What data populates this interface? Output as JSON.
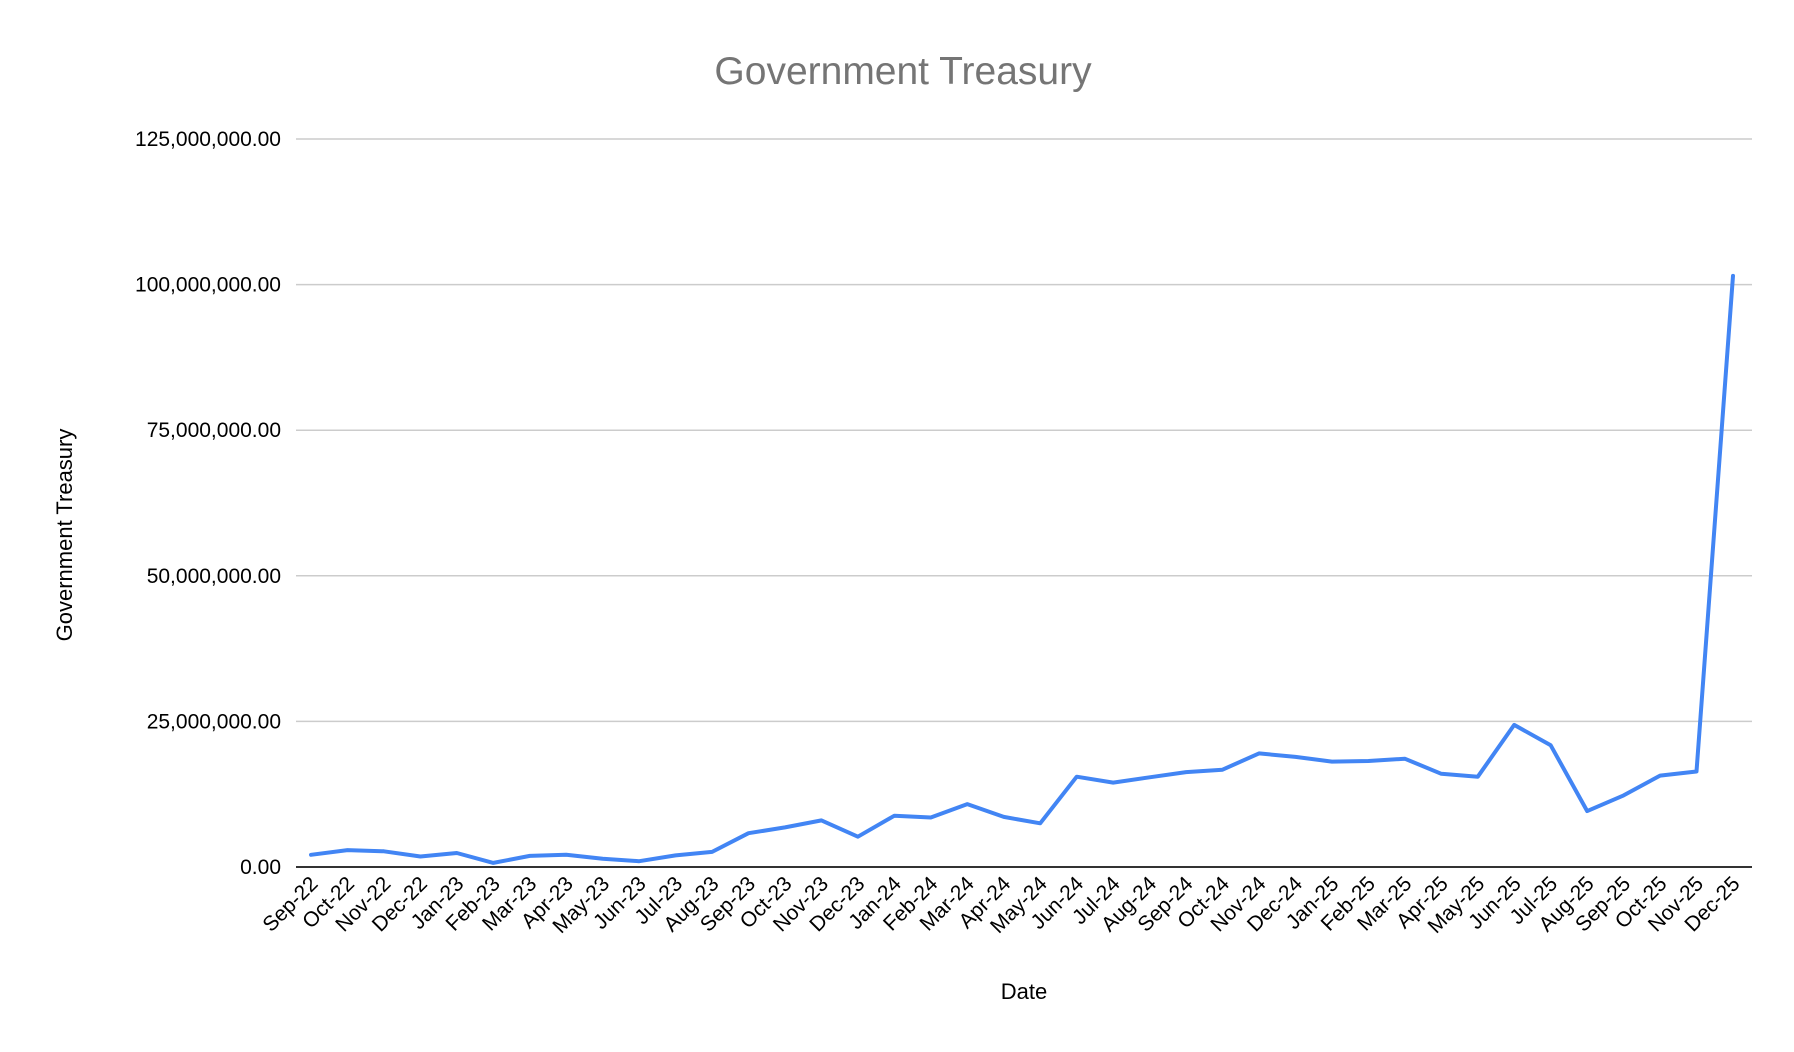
{
  "chart_data": {
    "type": "line",
    "title": "Government Treasury",
    "xlabel": "Date",
    "ylabel": "Government Treasury",
    "ylim": [
      0,
      125000000
    ],
    "yticks": [
      {
        "value": 0,
        "label": "0.00"
      },
      {
        "value": 25000000,
        "label": "25,000,000.00"
      },
      {
        "value": 50000000,
        "label": "50,000,000.00"
      },
      {
        "value": 75000000,
        "label": "75,000,000.00"
      },
      {
        "value": 100000000,
        "label": "100,000,000.00"
      },
      {
        "value": 125000000,
        "label": "125,000,000.00"
      }
    ],
    "grid": true,
    "legend": "none",
    "categories": [
      "Sep-22",
      "Oct-22",
      "Nov-22",
      "Dec-22",
      "Jan-23",
      "Feb-23",
      "Mar-23",
      "Apr-23",
      "May-23",
      "Jun-23",
      "Jul-23",
      "Aug-23",
      "Sep-23",
      "Oct-23",
      "Nov-23",
      "Dec-23",
      "Jan-24",
      "Feb-24",
      "Mar-24",
      "Apr-24",
      "May-24",
      "Jun-24",
      "Jul-24",
      "Aug-24",
      "Sep-24",
      "Oct-24",
      "Nov-24",
      "Dec-24",
      "Jan-25",
      "Feb-25",
      "Mar-25",
      "Apr-25",
      "May-25",
      "Jun-25",
      "Jul-25",
      "Aug-25",
      "Sep-25",
      "Oct-25",
      "Nov-25",
      "Dec-25"
    ],
    "series": [
      {
        "color": "#4285f4",
        "values": [
          2100000,
          2900000,
          2700000,
          1800000,
          2400000,
          700000,
          1900000,
          2100000,
          1400000,
          1000000,
          2000000,
          2600000,
          5800000,
          6800000,
          8000000,
          5200000,
          8800000,
          8500000,
          10800000,
          8600000,
          7500000,
          15500000,
          14500000,
          15400000,
          16300000,
          16700000,
          19500000,
          18900000,
          18100000,
          18200000,
          18600000,
          16000000,
          15500000,
          24400000,
          20900000,
          9600000,
          12300000,
          15700000,
          16400000,
          101500000
        ]
      }
    ]
  }
}
